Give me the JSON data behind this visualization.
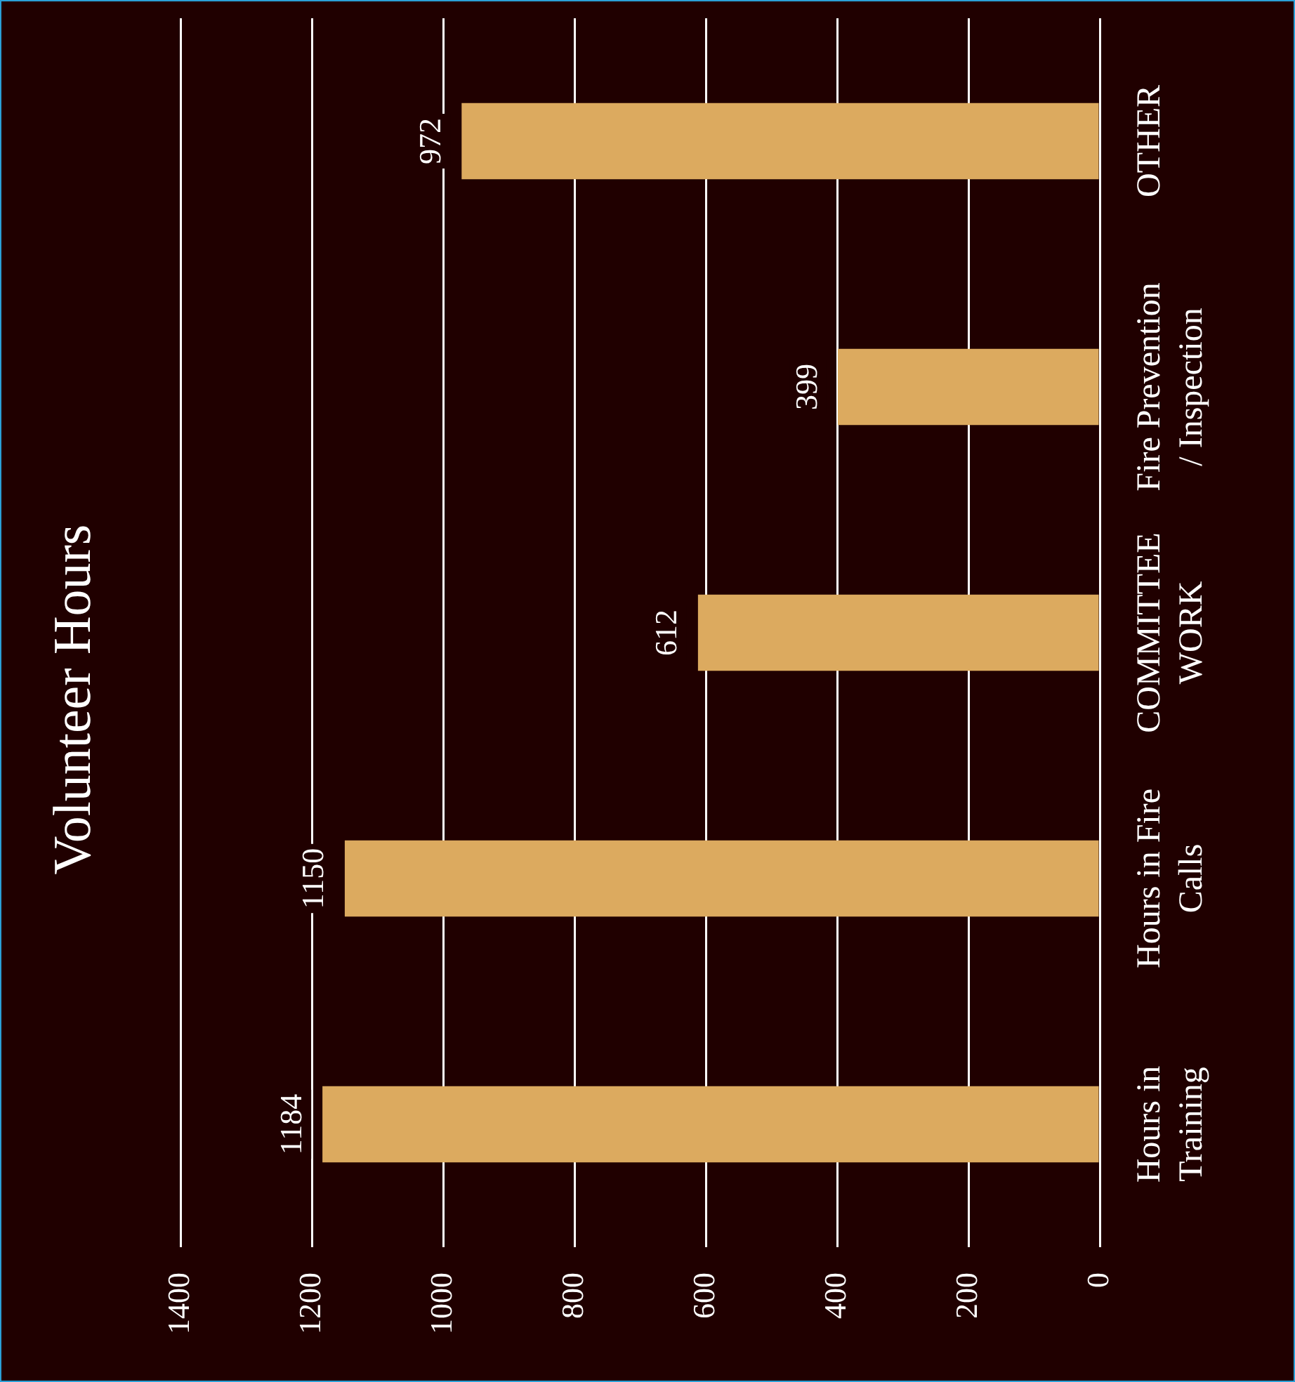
{
  "chart_data": {
    "type": "bar",
    "orientation": "horizontal",
    "title": "Volunteer Hours",
    "categories": [
      "OTHER",
      "Fire Prevention / Inspection",
      "COMMITTEE WORK",
      "Hours in Fire Calls",
      "Hours in Training"
    ],
    "values": [
      972,
      399,
      612,
      1150,
      1184
    ],
    "color": "#dcaa5f",
    "xlim": [
      1400,
      0
    ],
    "xticks": [
      0,
      200,
      400,
      600,
      800,
      1000,
      1200,
      1400
    ],
    "grid": "x",
    "data_labels": true
  }
}
